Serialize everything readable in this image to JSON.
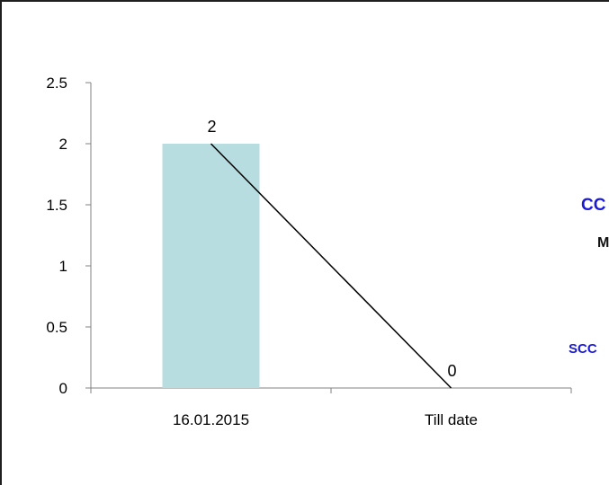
{
  "chart_data": {
    "type": "bar",
    "categories": [
      "16.01.2015",
      "Till date"
    ],
    "values": [
      2,
      0
    ],
    "data_labels": [
      "2",
      "0"
    ],
    "ylim": [
      0,
      2.5
    ],
    "yticks": [
      "0",
      "0.5",
      "1",
      "1.5",
      "2",
      "2.5"
    ],
    "grid": false,
    "overlay": "line",
    "colors": {
      "bar": "#b7dde1",
      "line": "#000000",
      "axis": "#808080"
    }
  },
  "clipped_text": [
    "CC",
    "M",
    "SCC"
  ]
}
